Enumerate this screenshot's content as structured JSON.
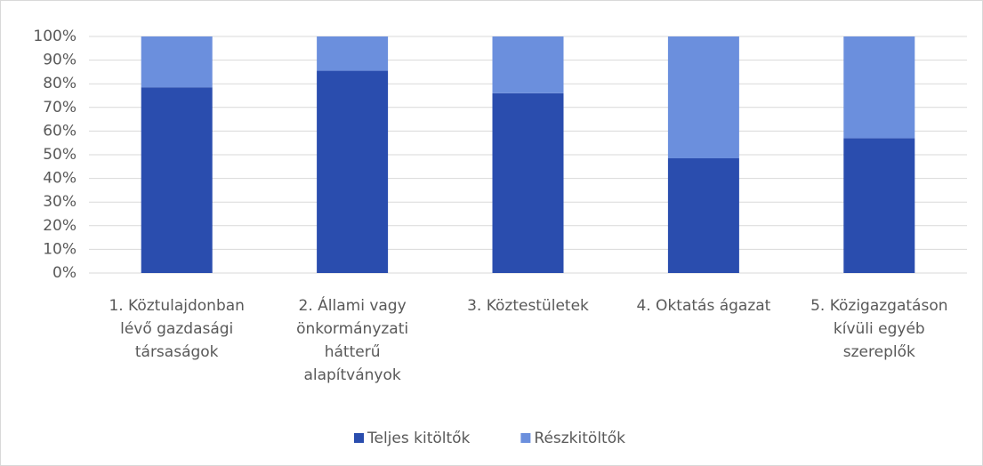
{
  "chart_data": {
    "type": "stacked_bar",
    "categories": [
      [
        "1. Köztulajdonban",
        "lévő gazdasági",
        "társaságok"
      ],
      [
        "2. Állami vagy",
        "önkormányzati",
        "hátterű",
        "alapítványok"
      ],
      [
        "3. Köztestületek"
      ],
      [
        "4. Oktatás ágazat"
      ],
      [
        "5. Közigazgatáson",
        "kívüli egyéb",
        "szereplők"
      ]
    ],
    "series": [
      {
        "name": "Teljes kitöltők",
        "color": "#2a4dae",
        "values": [
          78.5,
          85.5,
          76,
          48.5,
          57
        ]
      },
      {
        "name": "Részkitöltők",
        "color": "#6b8fdd",
        "values": [
          21.5,
          14.5,
          24,
          51.5,
          43
        ]
      }
    ],
    "ylim": [
      0,
      100
    ],
    "yticks": [
      {
        "value": 0,
        "label": "0%"
      },
      {
        "value": 10,
        "label": "10%"
      },
      {
        "value": 20,
        "label": "20%"
      },
      {
        "value": 30,
        "label": "30%"
      },
      {
        "value": 40,
        "label": "40%"
      },
      {
        "value": 50,
        "label": "50%"
      },
      {
        "value": 60,
        "label": "60%"
      },
      {
        "value": 70,
        "label": "70%"
      },
      {
        "value": 80,
        "label": "80%"
      },
      {
        "value": 90,
        "label": "90%"
      },
      {
        "value": 100,
        "label": "100%"
      }
    ],
    "grid": true,
    "legend": "bottom"
  }
}
